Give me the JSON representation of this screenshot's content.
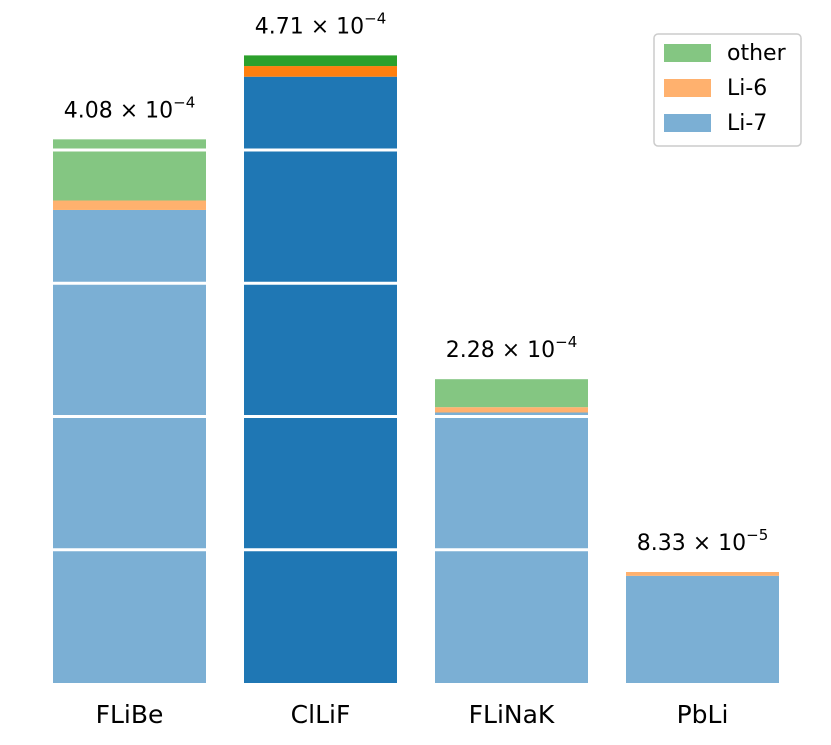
{
  "chart_data": {
    "type": "bar",
    "stacked": true,
    "title": "",
    "xlabel": "",
    "ylabel": "",
    "axes_visible": false,
    "grid": "horizontal white lines across bars",
    "ylim": [
      0,
      0.0005
    ],
    "categories": [
      "FLiBe",
      "ClLiF",
      "FLiNaK",
      "PbLi"
    ],
    "series": [
      {
        "name": "Li-7",
        "values": [
          0.000355,
          0.000455,
          0.000203,
          8.04e-05
        ]
      },
      {
        "name": "Li-6",
        "values": [
          7.1e-06,
          8e-06,
          4e-06,
          2.9e-06
        ]
      },
      {
        "name": "other",
        "values": [
          4.59e-05,
          8e-06,
          2.1e-05,
          0.0
        ]
      }
    ],
    "totals": [
      0.000408,
      0.000471,
      0.000228,
      8.33e-05
    ],
    "total_labels": [
      {
        "mantissa": "4.08",
        "exponent": "−4"
      },
      {
        "mantissa": "4.71",
        "exponent": "−4"
      },
      {
        "mantissa": "2.28",
        "exponent": "−4"
      },
      {
        "mantissa": "8.33",
        "exponent": "−5"
      }
    ],
    "times_sign": "× 10",
    "highlighted_category": "ClLiF",
    "white_divider_values": [
      0.0001,
      0.0002,
      0.0003,
      0.0004
    ],
    "legend": {
      "placement": "top-right",
      "entries": [
        "other",
        "Li-6",
        "Li-7"
      ]
    },
    "colors": {
      "Li-7": "#7bafd4",
      "Li-6": "#ffb16e",
      "other": "#84c682",
      "Li-7_highlight": "#1f77b4",
      "Li-6_highlight": "#ff7f0e",
      "other_highlight": "#2ca02c"
    }
  }
}
